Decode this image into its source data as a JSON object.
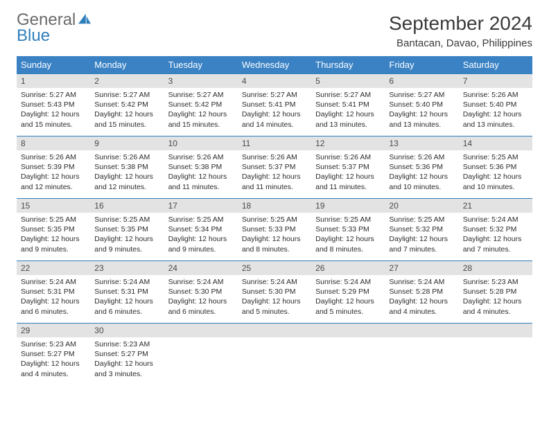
{
  "brand": {
    "word1": "General",
    "word2": "Blue",
    "sail_color": "#2f7fbc"
  },
  "header": {
    "month_title": "September 2024",
    "location": "Bantacan, Davao, Philippines"
  },
  "colors": {
    "header_bg": "#3a82c4",
    "header_text": "#ffffff",
    "daynum_bg": "#e3e3e3",
    "rule": "#2f7fbc"
  },
  "weekdays": [
    "Sunday",
    "Monday",
    "Tuesday",
    "Wednesday",
    "Thursday",
    "Friday",
    "Saturday"
  ],
  "days": [
    {
      "n": "1",
      "sr": "5:27 AM",
      "ss": "5:43 PM",
      "dl": "12 hours and 15 minutes."
    },
    {
      "n": "2",
      "sr": "5:27 AM",
      "ss": "5:42 PM",
      "dl": "12 hours and 15 minutes."
    },
    {
      "n": "3",
      "sr": "5:27 AM",
      "ss": "5:42 PM",
      "dl": "12 hours and 15 minutes."
    },
    {
      "n": "4",
      "sr": "5:27 AM",
      "ss": "5:41 PM",
      "dl": "12 hours and 14 minutes."
    },
    {
      "n": "5",
      "sr": "5:27 AM",
      "ss": "5:41 PM",
      "dl": "12 hours and 13 minutes."
    },
    {
      "n": "6",
      "sr": "5:27 AM",
      "ss": "5:40 PM",
      "dl": "12 hours and 13 minutes."
    },
    {
      "n": "7",
      "sr": "5:26 AM",
      "ss": "5:40 PM",
      "dl": "12 hours and 13 minutes."
    },
    {
      "n": "8",
      "sr": "5:26 AM",
      "ss": "5:39 PM",
      "dl": "12 hours and 12 minutes."
    },
    {
      "n": "9",
      "sr": "5:26 AM",
      "ss": "5:38 PM",
      "dl": "12 hours and 12 minutes."
    },
    {
      "n": "10",
      "sr": "5:26 AM",
      "ss": "5:38 PM",
      "dl": "12 hours and 11 minutes."
    },
    {
      "n": "11",
      "sr": "5:26 AM",
      "ss": "5:37 PM",
      "dl": "12 hours and 11 minutes."
    },
    {
      "n": "12",
      "sr": "5:26 AM",
      "ss": "5:37 PM",
      "dl": "12 hours and 11 minutes."
    },
    {
      "n": "13",
      "sr": "5:26 AM",
      "ss": "5:36 PM",
      "dl": "12 hours and 10 minutes."
    },
    {
      "n": "14",
      "sr": "5:25 AM",
      "ss": "5:36 PM",
      "dl": "12 hours and 10 minutes."
    },
    {
      "n": "15",
      "sr": "5:25 AM",
      "ss": "5:35 PM",
      "dl": "12 hours and 9 minutes."
    },
    {
      "n": "16",
      "sr": "5:25 AM",
      "ss": "5:35 PM",
      "dl": "12 hours and 9 minutes."
    },
    {
      "n": "17",
      "sr": "5:25 AM",
      "ss": "5:34 PM",
      "dl": "12 hours and 9 minutes."
    },
    {
      "n": "18",
      "sr": "5:25 AM",
      "ss": "5:33 PM",
      "dl": "12 hours and 8 minutes."
    },
    {
      "n": "19",
      "sr": "5:25 AM",
      "ss": "5:33 PM",
      "dl": "12 hours and 8 minutes."
    },
    {
      "n": "20",
      "sr": "5:25 AM",
      "ss": "5:32 PM",
      "dl": "12 hours and 7 minutes."
    },
    {
      "n": "21",
      "sr": "5:24 AM",
      "ss": "5:32 PM",
      "dl": "12 hours and 7 minutes."
    },
    {
      "n": "22",
      "sr": "5:24 AM",
      "ss": "5:31 PM",
      "dl": "12 hours and 6 minutes."
    },
    {
      "n": "23",
      "sr": "5:24 AM",
      "ss": "5:31 PM",
      "dl": "12 hours and 6 minutes."
    },
    {
      "n": "24",
      "sr": "5:24 AM",
      "ss": "5:30 PM",
      "dl": "12 hours and 6 minutes."
    },
    {
      "n": "25",
      "sr": "5:24 AM",
      "ss": "5:30 PM",
      "dl": "12 hours and 5 minutes."
    },
    {
      "n": "26",
      "sr": "5:24 AM",
      "ss": "5:29 PM",
      "dl": "12 hours and 5 minutes."
    },
    {
      "n": "27",
      "sr": "5:24 AM",
      "ss": "5:28 PM",
      "dl": "12 hours and 4 minutes."
    },
    {
      "n": "28",
      "sr": "5:23 AM",
      "ss": "5:28 PM",
      "dl": "12 hours and 4 minutes."
    },
    {
      "n": "29",
      "sr": "5:23 AM",
      "ss": "5:27 PM",
      "dl": "12 hours and 4 minutes."
    },
    {
      "n": "30",
      "sr": "5:23 AM",
      "ss": "5:27 PM",
      "dl": "12 hours and 3 minutes."
    }
  ],
  "labels": {
    "sunrise": "Sunrise:",
    "sunset": "Sunset:",
    "daylight": "Daylight:"
  },
  "layout": {
    "start_weekday": 0,
    "total_days": 30,
    "cols": 7
  }
}
